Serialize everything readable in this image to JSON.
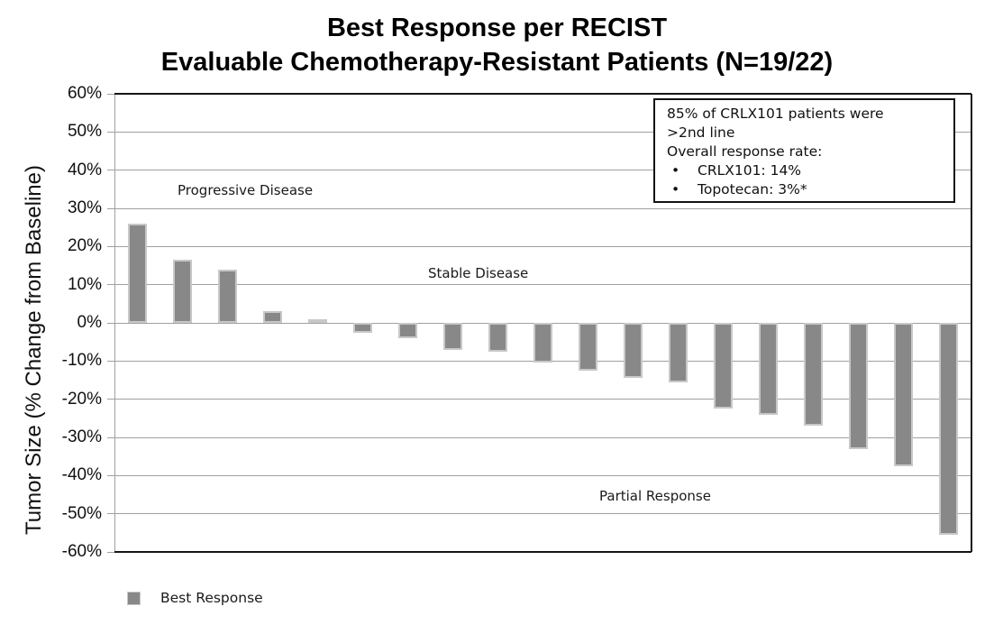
{
  "colors": {
    "background": "#ffffff",
    "bar_fill": "#888888",
    "bar_border": "#c8c8c8",
    "gridline": "#a0a0a0",
    "axis_border": "#161616",
    "text": "#1a1a1a"
  },
  "chart_data": {
    "type": "bar",
    "title": "Best Response per RECIST",
    "subtitle": "Evaluable Chemotherapy-Resistant Patients (N=19/22)",
    "ylabel": "Tumor Size (% Change from Baseline)",
    "xlabel": "",
    "ylim": [
      -60,
      60
    ],
    "ytick_step": 10,
    "ytick_labels": [
      "60%",
      "50%",
      "40%",
      "30%",
      "20%",
      "10%",
      "0%",
      "-10%",
      "-20%",
      "-30%",
      "-40%",
      "-50%",
      "-60%"
    ],
    "grid": "horizontal",
    "x_tick_labels_shown": false,
    "legend_position": "bottom-left",
    "series": [
      {
        "name": "Best Response",
        "values": [
          26,
          16.5,
          14,
          3,
          1,
          -2.5,
          -4,
          -7,
          -7.5,
          -10.5,
          -12.5,
          -14.5,
          -15.5,
          -22.5,
          -24,
          -27,
          -33,
          -37.5,
          -55.5
        ]
      }
    ],
    "region_annotations": [
      {
        "text": "Progressive Disease"
      },
      {
        "text": "Stable Disease"
      },
      {
        "text": "Partial Response"
      }
    ],
    "textbox": {
      "lines": [
        "85% of CRLX101 patients were",
        ">2nd line",
        "Overall response rate:"
      ],
      "bullet_char": "•",
      "bullets": [
        "CRLX101: 14%",
        "Topotecan: 3%*"
      ]
    }
  }
}
